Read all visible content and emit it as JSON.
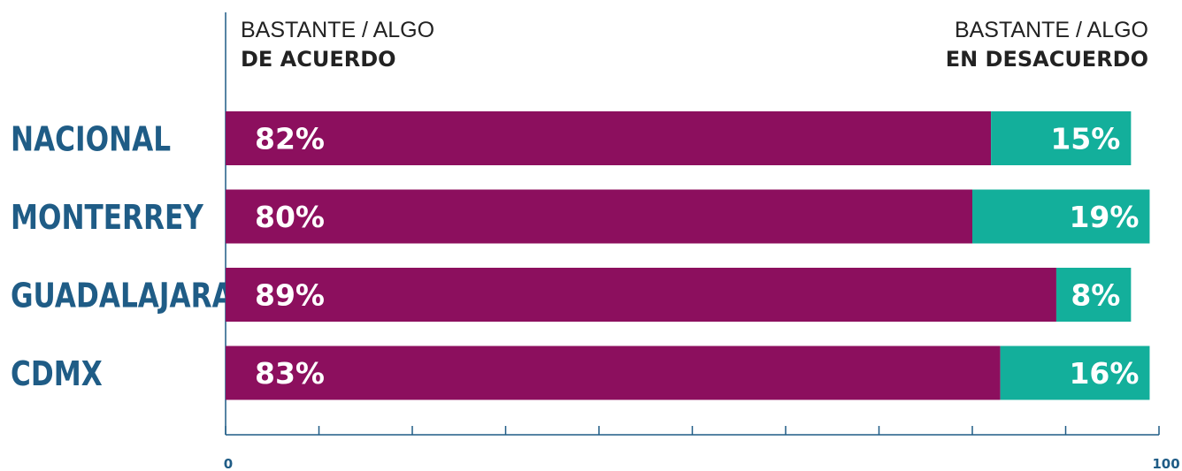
{
  "legend": {
    "agree": {
      "line1": "BASTANTE / ALGO",
      "line2": "DE ACUERDO"
    },
    "disagree": {
      "line1": "BASTANTE / ALGO",
      "line2": "EN DESACUERDO"
    }
  },
  "colors": {
    "agree": "#8c0f5e",
    "disagree": "#13af9b",
    "category_text": "#1f5c86",
    "axis": "#1f5c86",
    "bar_label": "#ffffff"
  },
  "chart_data": {
    "type": "bar",
    "orientation": "horizontal",
    "stacked": true,
    "categories": [
      "NACIONAL",
      "MONTERREY",
      "GUADALAJARA",
      "CDMX"
    ],
    "series": [
      {
        "name": "BASTANTE / ALGO DE ACUERDO",
        "values": [
          82,
          80,
          89,
          83
        ],
        "labels": [
          "82%",
          "80%",
          "89%",
          "83%"
        ]
      },
      {
        "name": "BASTANTE / ALGO EN DESACUERDO",
        "values": [
          15,
          19,
          8,
          16
        ],
        "labels": [
          "15%",
          "19%",
          "8%",
          "16%"
        ]
      }
    ],
    "xlim": [
      0,
      100
    ],
    "tick_values": [
      0,
      10,
      20,
      30,
      40,
      50,
      60,
      70,
      80,
      90,
      100
    ],
    "tick_labels": [
      "0",
      "100"
    ],
    "grid": false,
    "legend_position": "top"
  }
}
